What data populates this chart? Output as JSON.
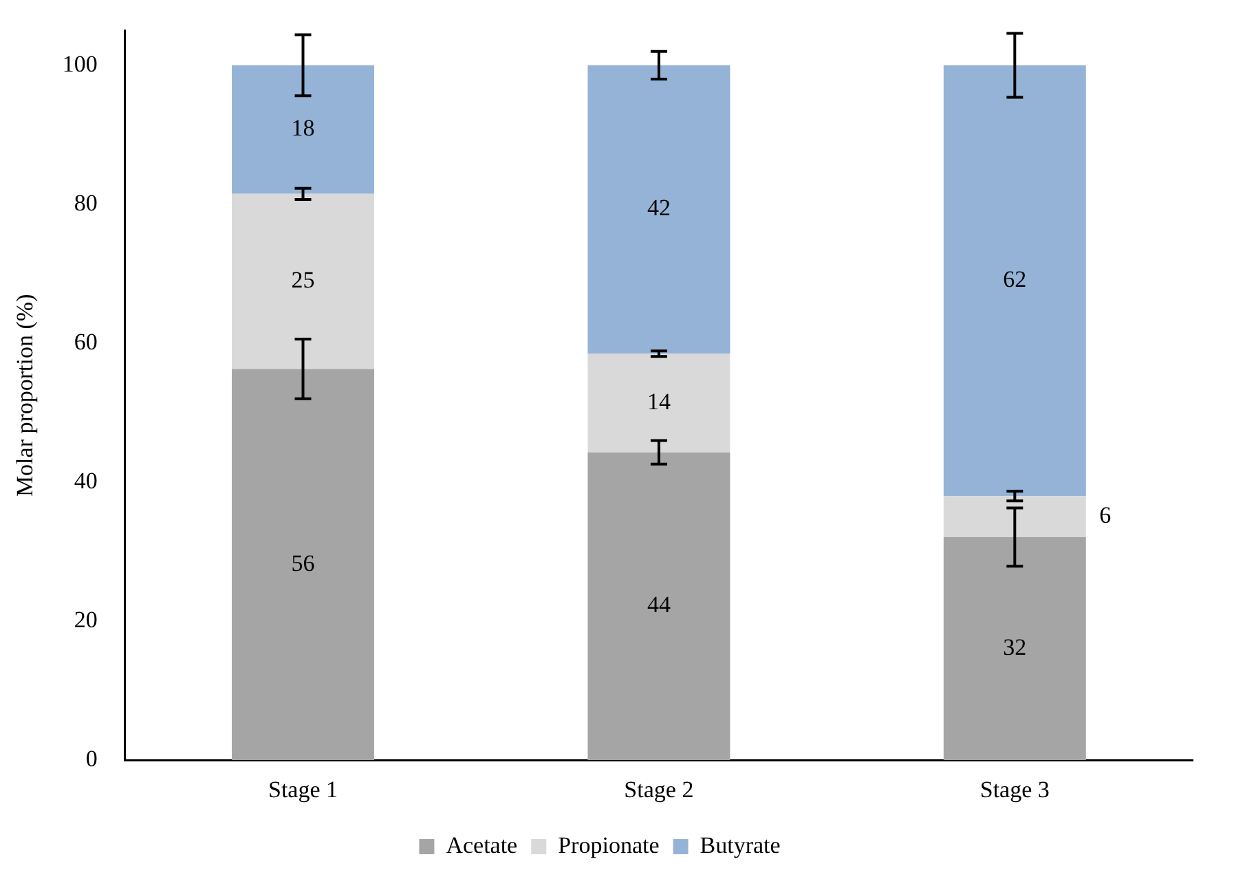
{
  "chart_data": {
    "type": "bar",
    "stacked": true,
    "ylabel": "Molar proportion (%)",
    "categories": [
      "Stage 1",
      "Stage 2",
      "Stage 3"
    ],
    "series": [
      {
        "name": "Acetate",
        "color": "#a5a5a5",
        "values": [
          56.3,
          44.3,
          32.1
        ],
        "value_labels": [
          "56",
          "44",
          "32"
        ],
        "errors": [
          4.3,
          1.7,
          4.2
        ]
      },
      {
        "name": "Propionate",
        "color": "#d9d9d9",
        "values": [
          25.2,
          14.2,
          5.9
        ],
        "value_labels": [
          "25",
          "14",
          "6"
        ],
        "errors": [
          0.8,
          0.4,
          0.7
        ]
      },
      {
        "name": "Butyrate",
        "color": "#95b3d7",
        "values": [
          18.5,
          41.5,
          62
        ],
        "value_labels": [
          "18",
          "42",
          "62"
        ],
        "errors": [
          4.4,
          2,
          4.6
        ]
      }
    ],
    "ylim": [
      0,
      105
    ],
    "yticks": [
      0,
      20,
      40,
      60,
      80,
      100
    ],
    "grid": false,
    "legend": "bottom"
  }
}
